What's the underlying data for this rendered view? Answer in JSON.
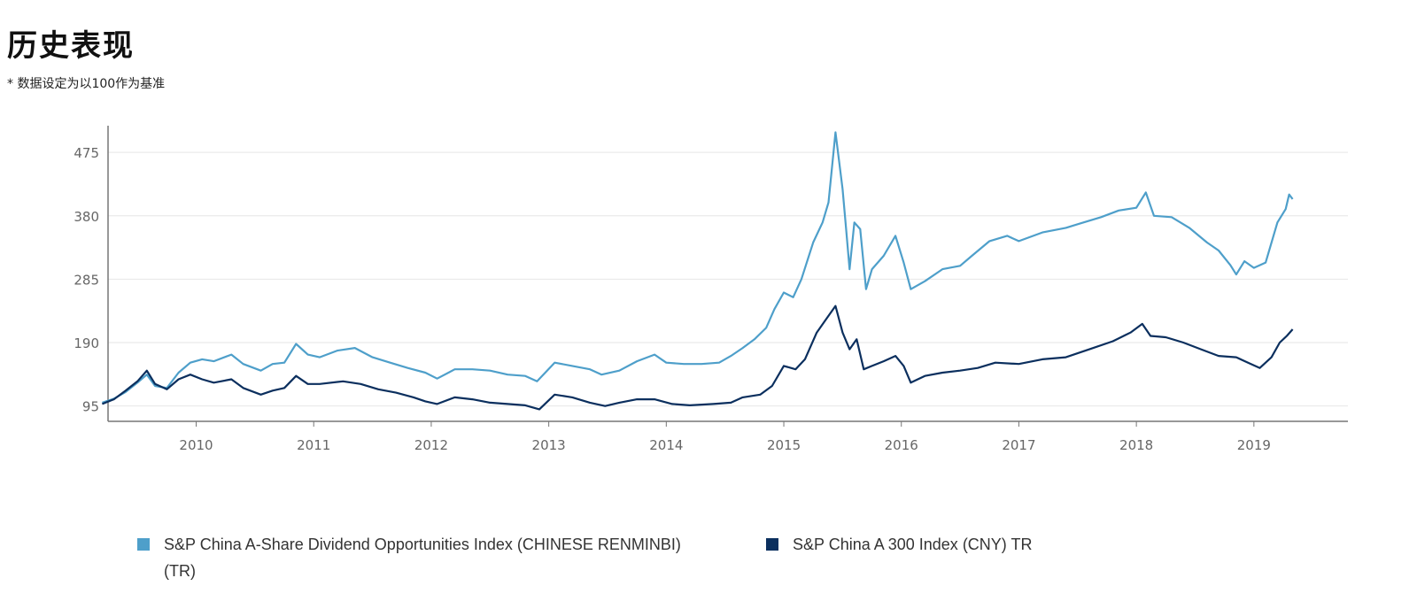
{
  "header": {
    "title": "历史表现",
    "subtitle": "* 数据设定为以100作为基准"
  },
  "chart_data": {
    "type": "line",
    "xlim": [
      2009.25,
      2019.8
    ],
    "ylim": [
      72,
      515
    ],
    "y_ticks": [
      95,
      190,
      285,
      380,
      475
    ],
    "x_ticks": [
      2010,
      2011,
      2012,
      2013,
      2014,
      2015,
      2016,
      2017,
      2018,
      2019
    ],
    "grid": "horizontal",
    "legend_position": "bottom",
    "series": [
      {
        "name": "S&P China A-Share Dividend Opportunities Index (CHINESE RENMINBI) (TR)",
        "color": "#4e9fca",
        "points": [
          [
            2009.2,
            100
          ],
          [
            2009.3,
            106
          ],
          [
            2009.4,
            116
          ],
          [
            2009.5,
            130
          ],
          [
            2009.58,
            142
          ],
          [
            2009.65,
            125
          ],
          [
            2009.75,
            122
          ],
          [
            2009.85,
            145
          ],
          [
            2009.95,
            160
          ],
          [
            2010.05,
            165
          ],
          [
            2010.15,
            162
          ],
          [
            2010.3,
            172
          ],
          [
            2010.4,
            158
          ],
          [
            2010.55,
            148
          ],
          [
            2010.65,
            158
          ],
          [
            2010.75,
            160
          ],
          [
            2010.85,
            188
          ],
          [
            2010.95,
            172
          ],
          [
            2011.05,
            168
          ],
          [
            2011.2,
            178
          ],
          [
            2011.35,
            182
          ],
          [
            2011.5,
            168
          ],
          [
            2011.65,
            160
          ],
          [
            2011.8,
            152
          ],
          [
            2011.95,
            145
          ],
          [
            2012.05,
            136
          ],
          [
            2012.2,
            150
          ],
          [
            2012.35,
            150
          ],
          [
            2012.5,
            148
          ],
          [
            2012.65,
            142
          ],
          [
            2012.8,
            140
          ],
          [
            2012.9,
            132
          ],
          [
            2013.05,
            160
          ],
          [
            2013.2,
            155
          ],
          [
            2013.35,
            150
          ],
          [
            2013.45,
            142
          ],
          [
            2013.6,
            148
          ],
          [
            2013.75,
            162
          ],
          [
            2013.9,
            172
          ],
          [
            2014.0,
            160
          ],
          [
            2014.15,
            158
          ],
          [
            2014.3,
            158
          ],
          [
            2014.45,
            160
          ],
          [
            2014.55,
            170
          ],
          [
            2014.65,
            182
          ],
          [
            2014.75,
            195
          ],
          [
            2014.85,
            212
          ],
          [
            2014.92,
            240
          ],
          [
            2015.0,
            265
          ],
          [
            2015.08,
            258
          ],
          [
            2015.15,
            285
          ],
          [
            2015.25,
            340
          ],
          [
            2015.33,
            370
          ],
          [
            2015.38,
            400
          ],
          [
            2015.44,
            505
          ],
          [
            2015.5,
            420
          ],
          [
            2015.53,
            360
          ],
          [
            2015.56,
            300
          ],
          [
            2015.6,
            370
          ],
          [
            2015.65,
            360
          ],
          [
            2015.7,
            270
          ],
          [
            2015.75,
            300
          ],
          [
            2015.85,
            320
          ],
          [
            2015.95,
            350
          ],
          [
            2016.02,
            310
          ],
          [
            2016.08,
            270
          ],
          [
            2016.2,
            282
          ],
          [
            2016.35,
            300
          ],
          [
            2016.5,
            305
          ],
          [
            2016.6,
            320
          ],
          [
            2016.75,
            342
          ],
          [
            2016.9,
            350
          ],
          [
            2017.0,
            342
          ],
          [
            2017.2,
            355
          ],
          [
            2017.4,
            362
          ],
          [
            2017.55,
            370
          ],
          [
            2017.7,
            378
          ],
          [
            2017.85,
            388
          ],
          [
            2018.0,
            392
          ],
          [
            2018.08,
            415
          ],
          [
            2018.15,
            380
          ],
          [
            2018.3,
            378
          ],
          [
            2018.45,
            362
          ],
          [
            2018.6,
            340
          ],
          [
            2018.7,
            328
          ],
          [
            2018.8,
            306
          ],
          [
            2018.85,
            292
          ],
          [
            2018.92,
            312
          ],
          [
            2019.0,
            302
          ],
          [
            2019.1,
            310
          ],
          [
            2019.2,
            370
          ],
          [
            2019.27,
            390
          ],
          [
            2019.3,
            412
          ],
          [
            2019.33,
            405
          ]
        ]
      },
      {
        "name": "S&P China A 300 Index (CNY) TR",
        "color": "#0b2f5e",
        "points": [
          [
            2009.2,
            98
          ],
          [
            2009.3,
            105
          ],
          [
            2009.4,
            118
          ],
          [
            2009.5,
            132
          ],
          [
            2009.58,
            148
          ],
          [
            2009.65,
            128
          ],
          [
            2009.75,
            120
          ],
          [
            2009.85,
            135
          ],
          [
            2009.95,
            142
          ],
          [
            2010.05,
            135
          ],
          [
            2010.15,
            130
          ],
          [
            2010.3,
            135
          ],
          [
            2010.4,
            122
          ],
          [
            2010.55,
            112
          ],
          [
            2010.65,
            118
          ],
          [
            2010.75,
            122
          ],
          [
            2010.85,
            140
          ],
          [
            2010.95,
            128
          ],
          [
            2011.05,
            128
          ],
          [
            2011.25,
            132
          ],
          [
            2011.4,
            128
          ],
          [
            2011.55,
            120
          ],
          [
            2011.7,
            115
          ],
          [
            2011.85,
            108
          ],
          [
            2011.95,
            102
          ],
          [
            2012.05,
            98
          ],
          [
            2012.2,
            108
          ],
          [
            2012.35,
            105
          ],
          [
            2012.5,
            100
          ],
          [
            2012.65,
            98
          ],
          [
            2012.8,
            96
          ],
          [
            2012.92,
            90
          ],
          [
            2013.05,
            112
          ],
          [
            2013.2,
            108
          ],
          [
            2013.35,
            100
          ],
          [
            2013.48,
            95
          ],
          [
            2013.6,
            100
          ],
          [
            2013.75,
            105
          ],
          [
            2013.9,
            105
          ],
          [
            2014.05,
            98
          ],
          [
            2014.2,
            96
          ],
          [
            2014.4,
            98
          ],
          [
            2014.55,
            100
          ],
          [
            2014.65,
            108
          ],
          [
            2014.8,
            112
          ],
          [
            2014.9,
            125
          ],
          [
            2015.0,
            155
          ],
          [
            2015.1,
            150
          ],
          [
            2015.18,
            165
          ],
          [
            2015.28,
            205
          ],
          [
            2015.36,
            225
          ],
          [
            2015.44,
            245
          ],
          [
            2015.5,
            205
          ],
          [
            2015.56,
            180
          ],
          [
            2015.62,
            195
          ],
          [
            2015.68,
            150
          ],
          [
            2015.75,
            155
          ],
          [
            2015.85,
            162
          ],
          [
            2015.95,
            170
          ],
          [
            2016.02,
            155
          ],
          [
            2016.08,
            130
          ],
          [
            2016.2,
            140
          ],
          [
            2016.35,
            145
          ],
          [
            2016.5,
            148
          ],
          [
            2016.65,
            152
          ],
          [
            2016.8,
            160
          ],
          [
            2017.0,
            158
          ],
          [
            2017.2,
            165
          ],
          [
            2017.4,
            168
          ],
          [
            2017.6,
            180
          ],
          [
            2017.8,
            192
          ],
          [
            2017.95,
            205
          ],
          [
            2018.05,
            218
          ],
          [
            2018.12,
            200
          ],
          [
            2018.25,
            198
          ],
          [
            2018.4,
            190
          ],
          [
            2018.55,
            180
          ],
          [
            2018.7,
            170
          ],
          [
            2018.85,
            168
          ],
          [
            2018.95,
            160
          ],
          [
            2019.05,
            152
          ],
          [
            2019.15,
            168
          ],
          [
            2019.22,
            190
          ],
          [
            2019.28,
            200
          ],
          [
            2019.33,
            210
          ]
        ]
      }
    ]
  }
}
